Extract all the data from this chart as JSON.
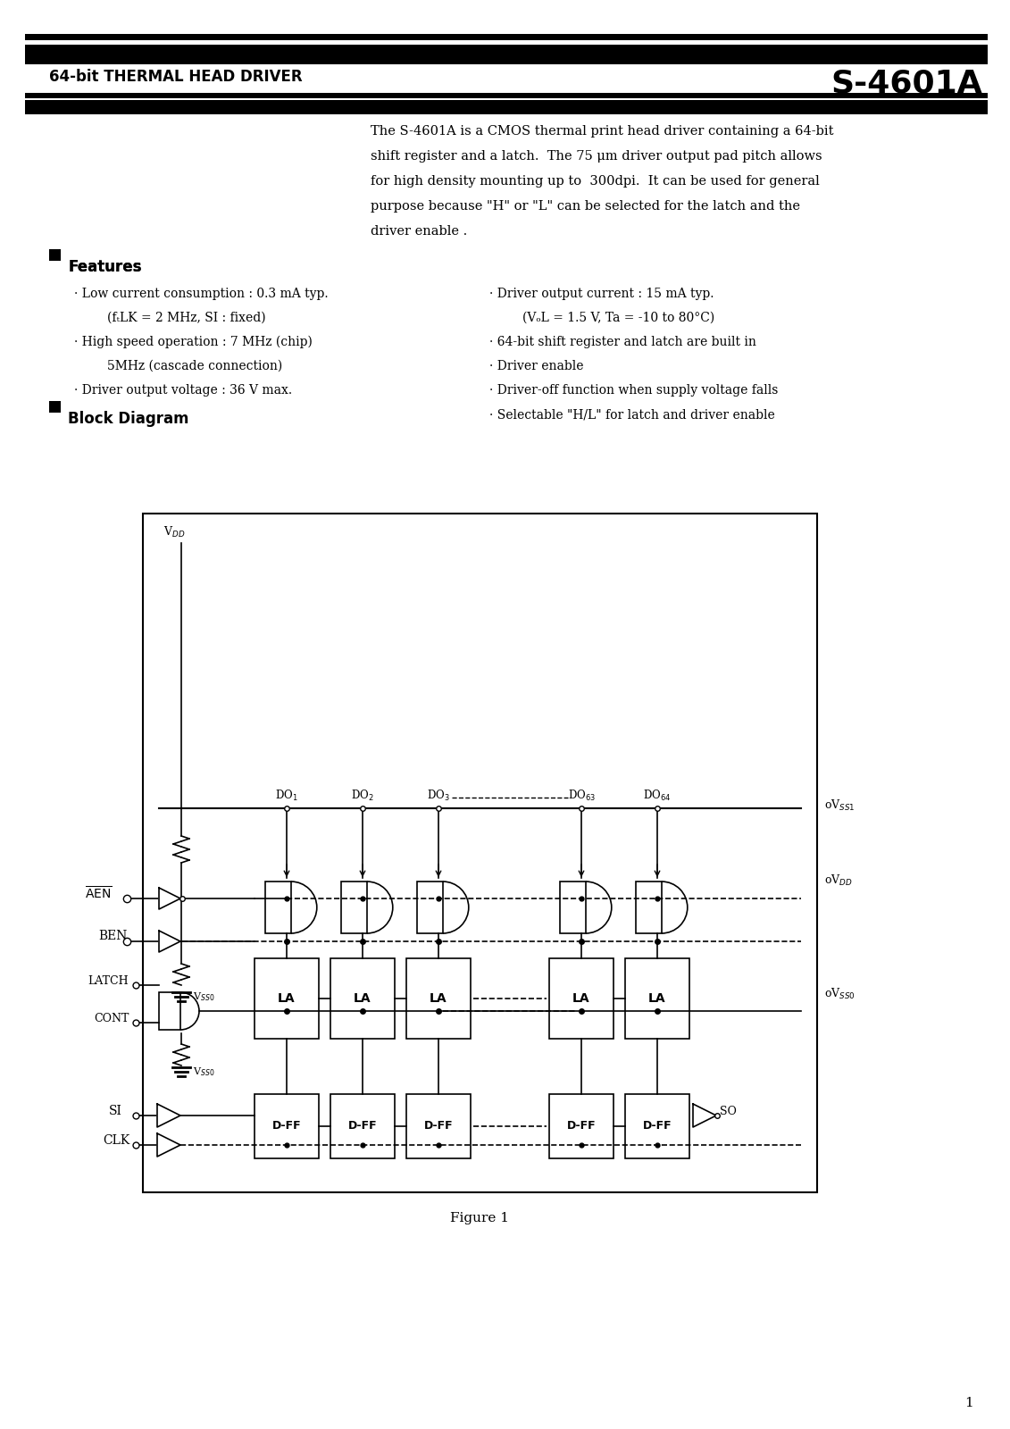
{
  "page_title_left": "64-bit THERMAL HEAD DRIVER",
  "page_title_right": "S-4601A",
  "desc_line1": "The S-4601A is a CMOS thermal print head driver containing a 64-bit",
  "desc_line2": "shift register and a latch.  The 75 μm driver output pad pitch allows",
  "desc_line3": "for high density mounting up to  300dpi.  It can be used for general",
  "desc_line4": "purpose because \"H\" or \"L\" can be selected for the latch and the",
  "desc_line5": "driver enable .",
  "feat_left1": "Low current consumption : 0.3 mA typ.",
  "feat_left1b": "(fₜLK = 2 MHz, SI : fixed)",
  "feat_left2": "High speed operation : 7 MHz (chip)",
  "feat_left2b": "5MHz (cascade connection)",
  "feat_left3": "Driver output voltage : 36 V max.",
  "feat_right1": "Driver output current : 15 mA typ.",
  "feat_right1b": "(VₒL = 1.5 V, Ta = -10 to 80°C)",
  "feat_right2": "64-bit shift register and latch are built in",
  "feat_right3": "Driver enable",
  "feat_right4": "Driver-off function when supply voltage falls",
  "feat_right5": "Selectable \"H/L\" for latch and driver enable",
  "block_diagram_title": "Block Diagram",
  "figure_caption": "Figure 1",
  "page_number": "1",
  "bg": "#ffffff"
}
